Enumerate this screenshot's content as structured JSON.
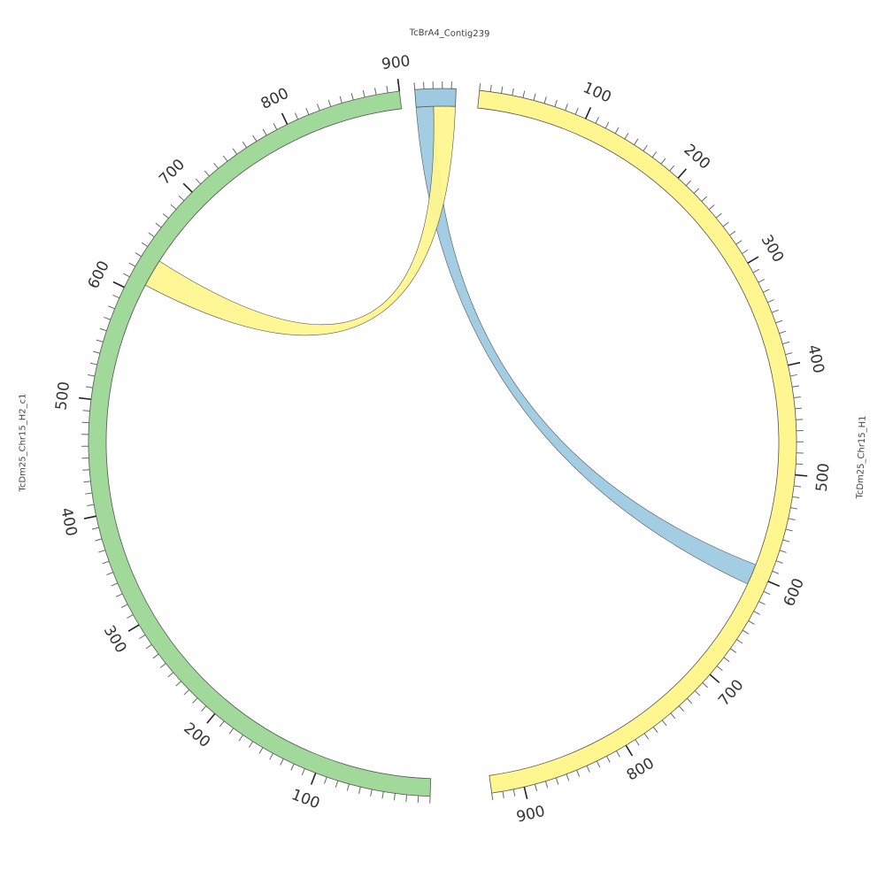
{
  "chart_data": {
    "type": "chord",
    "segments": [
      {
        "id": "contig",
        "name": "TcBrA4_Contig239",
        "length": 45,
        "color": "#9ECAE1",
        "ticks": []
      },
      {
        "id": "h1",
        "name": "TcDm25_Chr15_H1",
        "length": 930,
        "color": "#FFF68F",
        "ticks": [
          "100",
          "200",
          "300",
          "400",
          "500",
          "600",
          "700",
          "800",
          "900"
        ]
      },
      {
        "id": "h2",
        "name": "TcDm25_Chr15_H2_c1",
        "length": 900,
        "color": "#A1D99B",
        "ticks": [
          "100",
          "200",
          "300",
          "400",
          "500",
          "600",
          "700",
          "800",
          "900"
        ]
      }
    ],
    "links": [
      {
        "color": "#9ECAE1",
        "source": {
          "segment": "contig",
          "start": 0,
          "end": 20
        },
        "target": {
          "segment": "h1",
          "start": 590,
          "end": 610
        }
      },
      {
        "color": "#FFF68F",
        "source": {
          "segment": "contig",
          "start": 20,
          "end": 45
        },
        "target": {
          "segment": "h2",
          "start": 610,
          "end": 635
        }
      }
    ]
  }
}
